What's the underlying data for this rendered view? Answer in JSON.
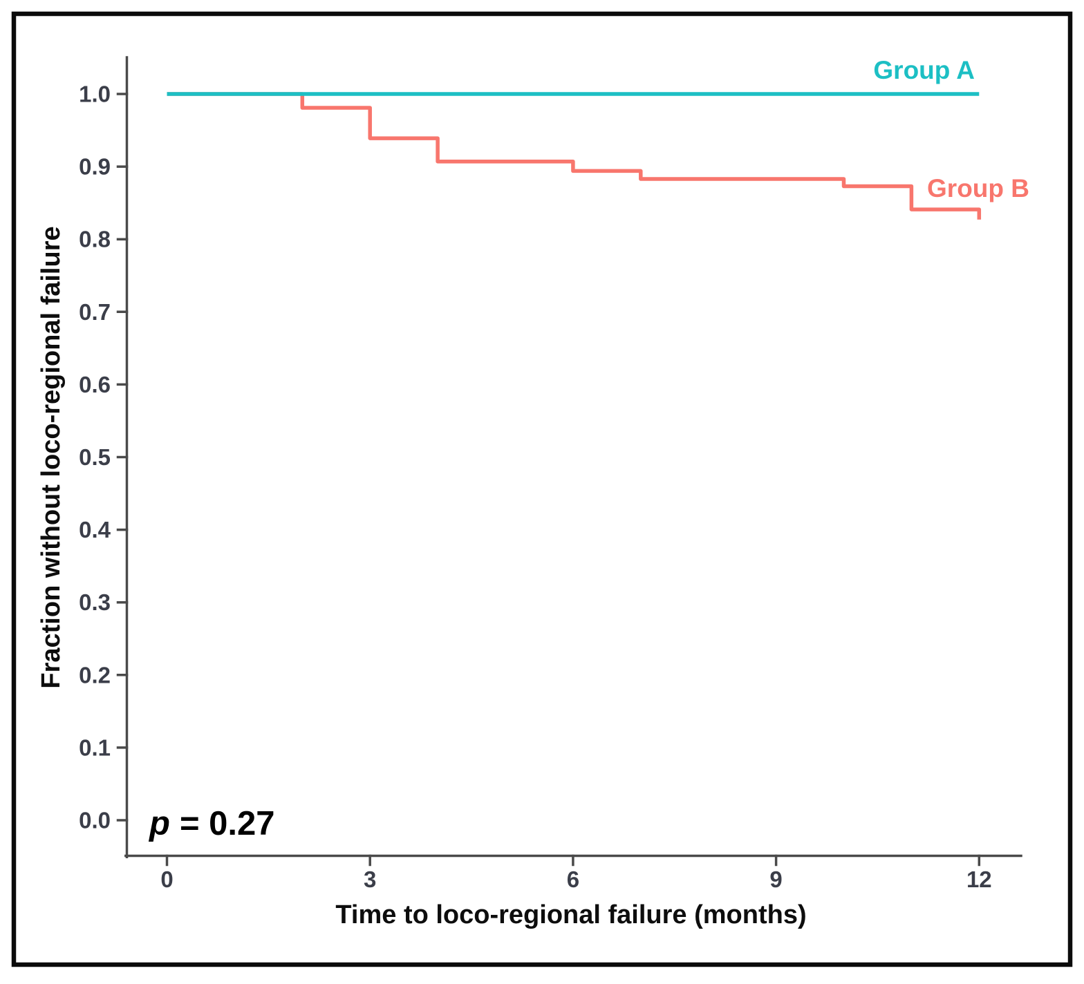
{
  "chart_data": {
    "type": "line",
    "subtype": "kaplan-meier-step-curves",
    "title": "",
    "xlabel": "Time to loco-regional failure (months)",
    "ylabel": "Fraction without loco-regional failure",
    "x_ticks": [
      0,
      3,
      6,
      9,
      12
    ],
    "y_ticks": [
      "1.0",
      "0.9",
      "0.8",
      "0.7",
      "0.6",
      "0.5",
      "0.4",
      "0.3",
      "0.2",
      "0.1",
      "0.0"
    ],
    "xlim": [
      -0.6,
      12.65
    ],
    "ylim": [
      -0.05,
      1.05
    ],
    "grid": false,
    "legend_position": "inline-right-of-curves",
    "annotation": {
      "italic_part": "p",
      "regular_part": "= 0.27"
    },
    "axis_color": "#4a4a4a",
    "tick_label_color": "#3b3e49",
    "series": [
      {
        "name": "Group A",
        "color": "#1cbfc4",
        "step_points": [
          [
            0,
            1.0
          ],
          [
            12,
            1.0
          ]
        ]
      },
      {
        "name": "Group B",
        "color": "#f8766d",
        "step_points": [
          [
            0,
            1.0
          ],
          [
            2,
            1.0
          ],
          [
            2,
            0.981
          ],
          [
            3,
            0.981
          ],
          [
            3,
            0.939
          ],
          [
            4,
            0.939
          ],
          [
            4,
            0.907
          ],
          [
            6,
            0.907
          ],
          [
            6,
            0.894
          ],
          [
            7,
            0.894
          ],
          [
            7,
            0.883
          ],
          [
            10,
            0.883
          ],
          [
            10,
            0.873
          ],
          [
            11,
            0.873
          ],
          [
            11,
            0.841
          ],
          [
            12,
            0.841
          ],
          [
            12,
            0.827
          ]
        ]
      }
    ]
  }
}
